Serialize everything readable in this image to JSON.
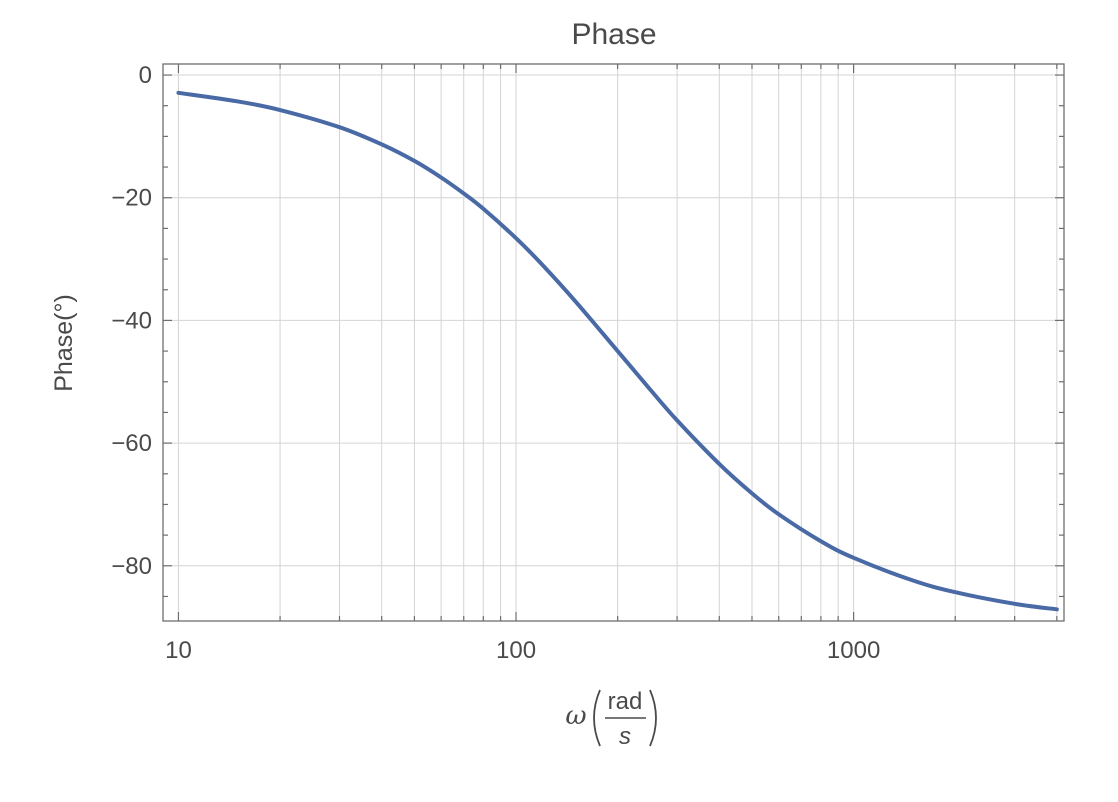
{
  "chart_data": {
    "type": "line",
    "title": "Phase",
    "ylabel": "Phase(°)",
    "xlabel": {
      "symbol": "ω",
      "numerator": "rad",
      "denominator": "s"
    },
    "xscale": "log",
    "xlim": [
      9.0,
      4200
    ],
    "ylim": [
      -89,
      1.8
    ],
    "x_ticks": [
      {
        "value": 10,
        "label": "10"
      },
      {
        "value": 100,
        "label": "100"
      },
      {
        "value": 1000,
        "label": "1000"
      }
    ],
    "y_ticks": [
      {
        "value": 0,
        "label": "0"
      },
      {
        "value": -20,
        "label": "−20"
      },
      {
        "value": -40,
        "label": "−40"
      },
      {
        "value": -60,
        "label": "−60"
      },
      {
        "value": -80,
        "label": "−80"
      }
    ],
    "grid": true,
    "line_color": "#4a6aa5",
    "series": [
      {
        "x": [
          10,
          15,
          20,
          30,
          40,
          50,
          60,
          70,
          80,
          100,
          120,
          150,
          200,
          250,
          300,
          400,
          500,
          600,
          800,
          1000,
          1500,
          2000,
          3000,
          4000
        ],
        "values": [
          -2.9,
          -4.3,
          -5.7,
          -8.5,
          -11.3,
          -14.0,
          -16.7,
          -19.3,
          -21.8,
          -26.6,
          -31.0,
          -36.9,
          -45.0,
          -51.3,
          -56.3,
          -63.4,
          -68.2,
          -71.6,
          -76.0,
          -78.7,
          -82.4,
          -84.3,
          -86.2,
          -87.1
        ]
      }
    ]
  }
}
